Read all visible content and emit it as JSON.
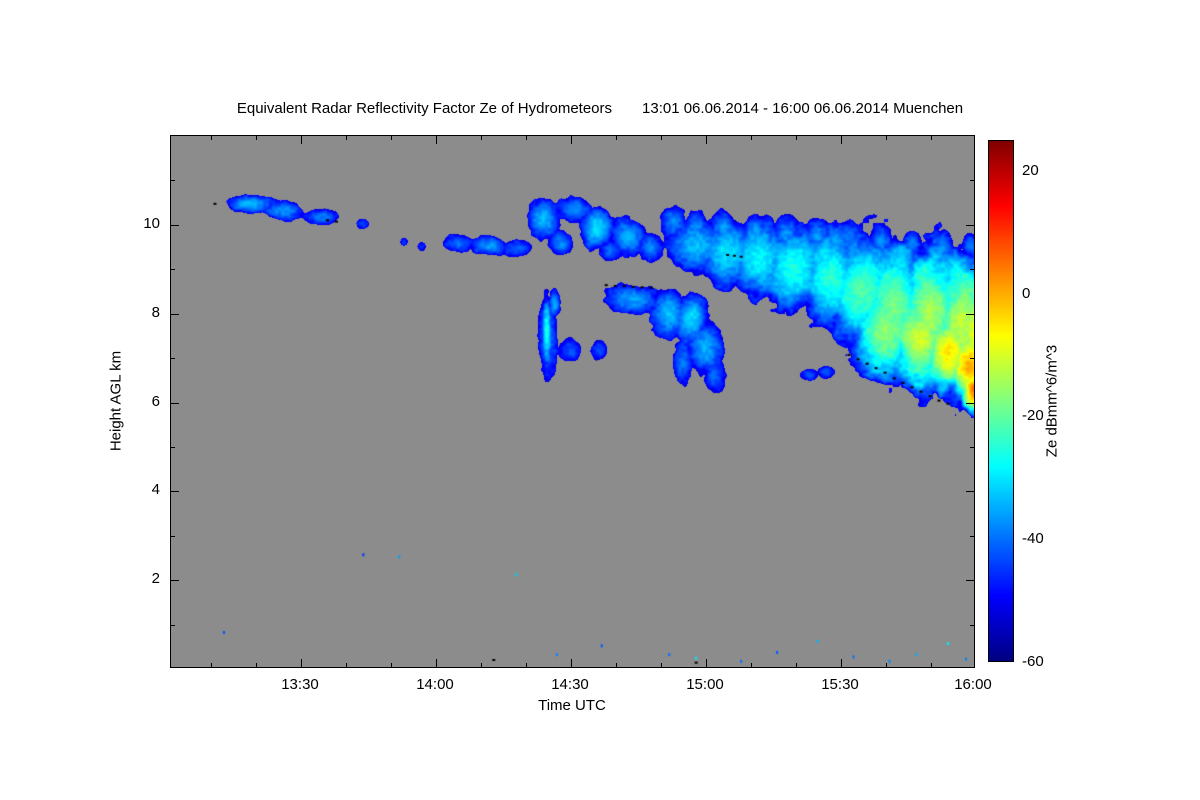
{
  "page": {
    "background": "#ffffff"
  },
  "chart_data": {
    "type": "heatmap",
    "title_left": "Equivalent Radar Reflectivity Factor Ze of Hydrometeors",
    "title_right": "13:01 06.06.2014 - 16:00 06.06.2014 Muenchen",
    "xlabel": "Time UTC",
    "ylabel": "Height AGL km",
    "colorbar_label": "Ze dBmm^6/m^3",
    "x_range_minutes_after_1300": [
      1,
      180
    ],
    "y_range_km": [
      0,
      12
    ],
    "colorbar_range_dbz": [
      -60,
      25
    ],
    "x_ticks": [
      {
        "label": "13:30",
        "minutes": 30
      },
      {
        "label": "14:00",
        "minutes": 60
      },
      {
        "label": "14:30",
        "minutes": 90
      },
      {
        "label": "15:00",
        "minutes": 120
      },
      {
        "label": "15:30",
        "minutes": 150
      },
      {
        "label": "16:00",
        "minutes": 180
      }
    ],
    "x_minor_ticks": [
      10,
      20,
      40,
      50,
      70,
      80,
      100,
      110,
      130,
      140,
      160,
      170
    ],
    "y_ticks": [
      {
        "label": "2",
        "km": 2
      },
      {
        "label": "4",
        "km": 4
      },
      {
        "label": "6",
        "km": 6
      },
      {
        "label": "8",
        "km": 8
      },
      {
        "label": "10",
        "km": 10
      }
    ],
    "y_minor_ticks": [
      1,
      3,
      5,
      7,
      9,
      11
    ],
    "colorbar_ticks": [
      {
        "label": "20",
        "dbz": 20
      },
      {
        "label": "0",
        "dbz": 0
      },
      {
        "label": "-20",
        "dbz": -20
      },
      {
        "label": "-40",
        "dbz": -40
      },
      {
        "label": "-60",
        "dbz": -60
      }
    ],
    "background_color": "#8c8c8c",
    "colormap": "jet",
    "clouds_t_h_tr_hr_dbz": [
      [
        19,
        10.45,
        5,
        0.22,
        -33
      ],
      [
        26,
        10.3,
        4.5,
        0.22,
        -37
      ],
      [
        35,
        10.15,
        4,
        0.2,
        -39
      ],
      [
        44,
        10.0,
        1.5,
        0.12,
        -44
      ],
      [
        53,
        9.6,
        1,
        0.1,
        -44
      ],
      [
        57,
        9.5,
        1,
        0.1,
        -45
      ],
      [
        65,
        9.55,
        3.5,
        0.2,
        -40
      ],
      [
        72,
        9.5,
        4,
        0.22,
        -36
      ],
      [
        78,
        9.45,
        3.5,
        0.18,
        -41
      ],
      [
        84,
        10.1,
        3.5,
        0.45,
        -34
      ],
      [
        91,
        10.35,
        4,
        0.3,
        -37
      ],
      [
        96,
        9.9,
        3.5,
        0.5,
        -31
      ],
      [
        88,
        9.55,
        3,
        0.3,
        -38
      ],
      [
        99,
        9.4,
        3,
        0.25,
        -40
      ],
      [
        103,
        9.7,
        4,
        0.45,
        -35
      ],
      [
        108,
        9.45,
        3,
        0.35,
        -38
      ],
      [
        113,
        10.05,
        3,
        0.4,
        -38
      ],
      [
        118,
        9.95,
        3,
        0.35,
        -37
      ],
      [
        124,
        9.9,
        3,
        0.4,
        -36
      ],
      [
        131,
        9.8,
        3,
        0.45,
        -36
      ],
      [
        138,
        9.75,
        3,
        0.45,
        -37
      ],
      [
        145,
        9.7,
        3,
        0.45,
        -37
      ],
      [
        152,
        9.65,
        3,
        0.45,
        -38
      ],
      [
        159,
        9.6,
        3,
        0.4,
        -38
      ],
      [
        166,
        9.55,
        2.5,
        0.35,
        -39
      ],
      [
        173,
        9.5,
        2.5,
        0.35,
        -38
      ],
      [
        179,
        9.5,
        2,
        0.3,
        -39
      ],
      [
        118,
        9.5,
        7,
        0.65,
        -33
      ],
      [
        125,
        9.35,
        7,
        0.8,
        -30
      ],
      [
        132,
        9.2,
        7,
        0.9,
        -28
      ],
      [
        140,
        9.0,
        8,
        1.0,
        -26
      ],
      [
        148,
        8.8,
        8,
        1.2,
        -24
      ],
      [
        155,
        8.5,
        9,
        1.4,
        -21
      ],
      [
        162,
        8.2,
        9,
        1.6,
        -18
      ],
      [
        170,
        7.95,
        9,
        1.8,
        -14
      ],
      [
        177,
        7.7,
        8,
        1.9,
        -12
      ],
      [
        160,
        7.6,
        9,
        1.3,
        -16
      ],
      [
        168,
        7.4,
        8,
        1.2,
        -10
      ],
      [
        174,
        7.1,
        7,
        1.05,
        -5
      ],
      [
        179,
        6.8,
        6,
        1.0,
        1
      ],
      [
        180,
        6.25,
        4,
        0.65,
        6
      ],
      [
        180,
        7.5,
        5,
        1.4,
        -8
      ],
      [
        84.8,
        7.6,
        1.2,
        0.85,
        -26
      ],
      [
        85,
        7.5,
        2.2,
        1.0,
        -40
      ],
      [
        86.5,
        8.2,
        1.5,
        0.35,
        -35
      ],
      [
        90,
        7.15,
        2.5,
        0.28,
        -42
      ],
      [
        96.5,
        7.15,
        2,
        0.25,
        -43
      ],
      [
        104,
        8.3,
        6,
        0.35,
        -36
      ],
      [
        112,
        8.0,
        4,
        0.55,
        -33
      ],
      [
        117,
        7.9,
        4,
        0.6,
        -31
      ],
      [
        120,
        7.2,
        4,
        0.7,
        -35
      ],
      [
        115,
        6.9,
        2.5,
        0.45,
        -39
      ],
      [
        122,
        6.6,
        2.5,
        0.4,
        -41
      ],
      [
        143,
        6.6,
        2,
        0.14,
        -42
      ],
      [
        147,
        6.65,
        2,
        0.14,
        -42
      ]
    ],
    "black_marks_t_h": [
      [
        11,
        10.45
      ],
      [
        36,
        10.08
      ],
      [
        38,
        10.05
      ],
      [
        98,
        8.62
      ],
      [
        100,
        8.6
      ],
      [
        102,
        8.6
      ],
      [
        104,
        8.58
      ],
      [
        106,
        8.57
      ],
      [
        108,
        8.56
      ],
      [
        125,
        9.3
      ],
      [
        126.5,
        9.28
      ],
      [
        128,
        9.26
      ],
      [
        152,
        7.05
      ],
      [
        154,
        6.95
      ],
      [
        156,
        6.85
      ],
      [
        158,
        6.75
      ],
      [
        160,
        6.65
      ],
      [
        162,
        6.52
      ],
      [
        164,
        6.42
      ],
      [
        166,
        6.32
      ],
      [
        168,
        6.22
      ],
      [
        170,
        6.12
      ],
      [
        172,
        6.02
      ],
      [
        174,
        5.95
      ],
      [
        73,
        0.18
      ],
      [
        118,
        0.12
      ]
    ],
    "specks_t_h_dbz": [
      [
        13,
        0.8,
        -42
      ],
      [
        44,
        2.55,
        -45
      ],
      [
        52,
        2.5,
        -36
      ],
      [
        78,
        2.1,
        -32
      ],
      [
        87,
        0.3,
        -38
      ],
      [
        97,
        0.5,
        -42
      ],
      [
        112,
        0.3,
        -40
      ],
      [
        118,
        0.22,
        -30
      ],
      [
        128,
        0.15,
        -40
      ],
      [
        136,
        0.35,
        -42
      ],
      [
        145,
        0.6,
        -34
      ],
      [
        153,
        0.25,
        -40
      ],
      [
        161,
        0.15,
        -38
      ],
      [
        167,
        0.3,
        -35
      ],
      [
        174,
        0.55,
        -30
      ],
      [
        178,
        0.2,
        -38
      ]
    ]
  }
}
